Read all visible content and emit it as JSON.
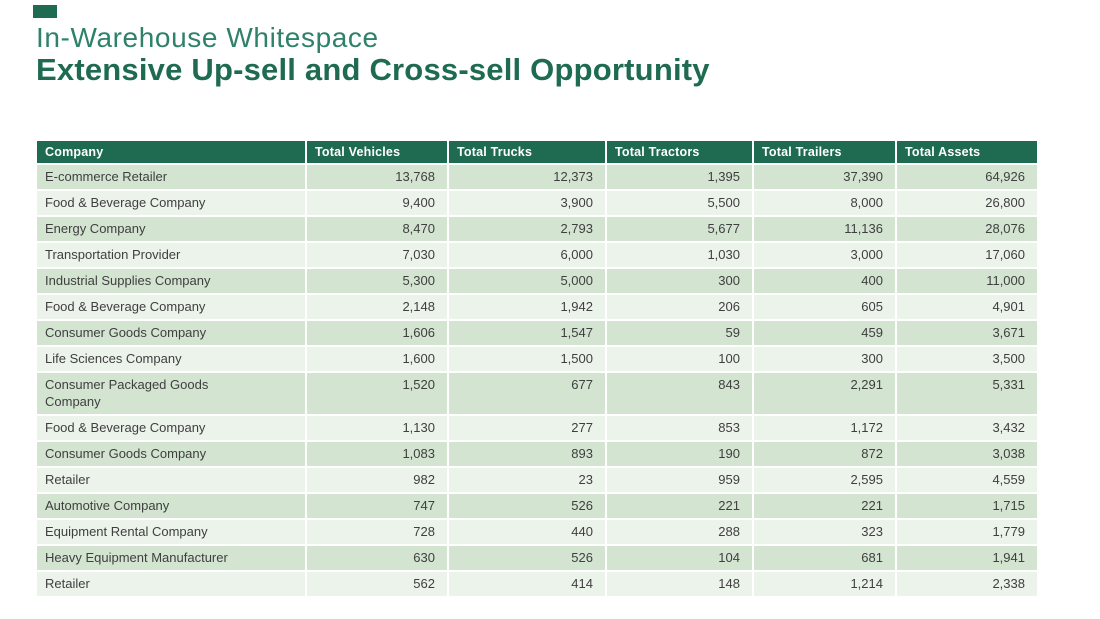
{
  "slide": {
    "title_line1": "In-Warehouse Whitespace",
    "title_line2": "Extensive Up-sell and Cross-sell Opportunity"
  },
  "colors": {
    "header_green": "#1E6B52",
    "title_green": "#2F8169",
    "row_green": "#D3E4D1",
    "row_light": "#EBF3EA",
    "body_text": "#3F3F3F"
  },
  "table": {
    "columns": [
      "Company",
      "Total Vehicles",
      "Total Trucks",
      "Total Tractors",
      "Total Trailers",
      "Total Assets"
    ],
    "rows": [
      {
        "company": "E-commerce Retailer",
        "vehicles": "13,768",
        "trucks": "12,373",
        "tractors": "1,395",
        "trailers": "37,390",
        "assets": "64,926"
      },
      {
        "company": "Food & Beverage Company",
        "vehicles": "9,400",
        "trucks": "3,900",
        "tractors": "5,500",
        "trailers": "8,000",
        "assets": "26,800"
      },
      {
        "company": "Energy Company",
        "vehicles": "8,470",
        "trucks": "2,793",
        "tractors": "5,677",
        "trailers": "11,136",
        "assets": "28,076"
      },
      {
        "company": "Transportation Provider",
        "vehicles": "7,030",
        "trucks": "6,000",
        "tractors": "1,030",
        "trailers": "3,000",
        "assets": "17,060"
      },
      {
        "company": "Industrial Supplies Company",
        "vehicles": "5,300",
        "trucks": "5,000",
        "tractors": "300",
        "trailers": "400",
        "assets": "11,000"
      },
      {
        "company": "Food & Beverage Company",
        "vehicles": "2,148",
        "trucks": "1,942",
        "tractors": "206",
        "trailers": "605",
        "assets": "4,901"
      },
      {
        "company": "Consumer Goods Company",
        "vehicles": "1,606",
        "trucks": "1,547",
        "tractors": "59",
        "trailers": "459",
        "assets": "3,671"
      },
      {
        "company": "Life Sciences Company",
        "vehicles": "1,600",
        "trucks": "1,500",
        "tractors": "100",
        "trailers": "300",
        "assets": "3,500"
      },
      {
        "company": "Consumer Packaged Goods\nCompany",
        "vehicles": "1,520",
        "trucks": "677",
        "tractors": "843",
        "trailers": "2,291",
        "assets": "5,331"
      },
      {
        "company": "Food & Beverage Company",
        "vehicles": "1,130",
        "trucks": "277",
        "tractors": "853",
        "trailers": "1,172",
        "assets": "3,432"
      },
      {
        "company": "Consumer Goods Company",
        "vehicles": "1,083",
        "trucks": "893",
        "tractors": "190",
        "trailers": "872",
        "assets": "3,038"
      },
      {
        "company": "Retailer",
        "vehicles": "982",
        "trucks": "23",
        "tractors": "959",
        "trailers": "2,595",
        "assets": "4,559"
      },
      {
        "company": "Automotive Company",
        "vehicles": "747",
        "trucks": "526",
        "tractors": "221",
        "trailers": "221",
        "assets": "1,715"
      },
      {
        "company": "Equipment Rental Company",
        "vehicles": "728",
        "trucks": "440",
        "tractors": "288",
        "trailers": "323",
        "assets": "1,779"
      },
      {
        "company": "Heavy Equipment Manufacturer",
        "vehicles": "630",
        "trucks": "526",
        "tractors": "104",
        "trailers": "681",
        "assets": "1,941"
      },
      {
        "company": "Retailer",
        "vehicles": "562",
        "trucks": "414",
        "tractors": "148",
        "trailers": "1,214",
        "assets": "2,338"
      }
    ]
  }
}
